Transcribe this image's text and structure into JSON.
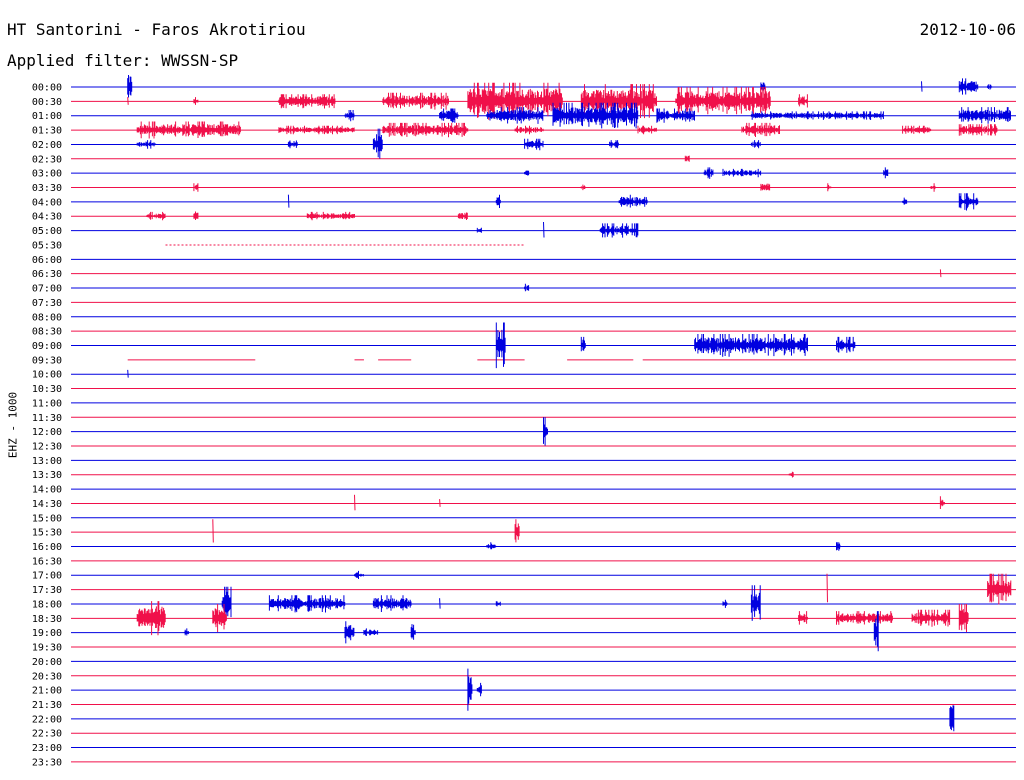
{
  "header": {
    "station": "HT Santorini - Faros Akrotiriou",
    "date": "2012-10-06",
    "filter": "Applied filter: WWSSN-SP"
  },
  "chart_data": {
    "type": "line",
    "ylabel": "EHZ - 1000",
    "row_labels": [
      "00:00",
      "00:30",
      "01:00",
      "01:30",
      "02:00",
      "02:30",
      "03:00",
      "03:30",
      "04:00",
      "04:30",
      "05:00",
      "05:30",
      "06:00",
      "06:30",
      "07:00",
      "07:30",
      "08:00",
      "08:30",
      "09:00",
      "09:30",
      "10:00",
      "10:30",
      "11:00",
      "11:30",
      "12:00",
      "12:30",
      "13:00",
      "13:30",
      "14:00",
      "14:30",
      "15:00",
      "15:30",
      "16:00",
      "16:30",
      "17:00",
      "17:30",
      "18:00",
      "18:30",
      "19:00",
      "19:30",
      "20:00",
      "20:30",
      "21:00",
      "21:30",
      "22:00",
      "22:30",
      "23:00",
      "23:30"
    ],
    "colors": {
      "even_rows": "#0000e0",
      "odd_rows": "#f0104a"
    },
    "events": [
      {
        "row": 0,
        "start": 0.06,
        "end": 0.065,
        "amp": 1.2
      },
      {
        "row": 0,
        "start": 0.73,
        "end": 0.735,
        "amp": 0.5
      },
      {
        "row": 0,
        "start": 0.9,
        "end": 0.902,
        "amp": 0.4
      },
      {
        "row": 0,
        "start": 0.94,
        "end": 0.96,
        "amp": 0.6
      },
      {
        "row": 0,
        "start": 0.97,
        "end": 0.975,
        "amp": 0.3
      },
      {
        "row": 1,
        "start": 0.06,
        "end": 0.062,
        "amp": 0.3
      },
      {
        "row": 1,
        "start": 0.13,
        "end": 0.135,
        "amp": 0.3
      },
      {
        "row": 1,
        "start": 0.22,
        "end": 0.28,
        "amp": 0.5
      },
      {
        "row": 1,
        "start": 0.33,
        "end": 0.4,
        "amp": 0.6
      },
      {
        "row": 1,
        "start": 0.42,
        "end": 0.52,
        "amp": 1.3
      },
      {
        "row": 1,
        "start": 0.54,
        "end": 0.62,
        "amp": 1.2
      },
      {
        "row": 1,
        "start": 0.64,
        "end": 0.74,
        "amp": 1.0
      },
      {
        "row": 1,
        "start": 0.77,
        "end": 0.78,
        "amp": 0.5
      },
      {
        "row": 2,
        "start": 0.29,
        "end": 0.3,
        "amp": 0.4
      },
      {
        "row": 2,
        "start": 0.39,
        "end": 0.41,
        "amp": 0.5
      },
      {
        "row": 2,
        "start": 0.44,
        "end": 0.5,
        "amp": 0.6
      },
      {
        "row": 2,
        "start": 0.51,
        "end": 0.6,
        "amp": 0.9
      },
      {
        "row": 2,
        "start": 0.62,
        "end": 0.66,
        "amp": 0.5
      },
      {
        "row": 2,
        "start": 0.72,
        "end": 0.86,
        "amp": 0.3
      },
      {
        "row": 2,
        "start": 0.94,
        "end": 0.995,
        "amp": 0.6
      },
      {
        "row": 3,
        "start": 0.07,
        "end": 0.18,
        "amp": 0.6
      },
      {
        "row": 3,
        "start": 0.22,
        "end": 0.3,
        "amp": 0.3
      },
      {
        "row": 3,
        "start": 0.33,
        "end": 0.42,
        "amp": 0.5
      },
      {
        "row": 3,
        "start": 0.47,
        "end": 0.5,
        "amp": 0.3
      },
      {
        "row": 3,
        "start": 0.6,
        "end": 0.62,
        "amp": 0.3
      },
      {
        "row": 3,
        "start": 0.71,
        "end": 0.75,
        "amp": 0.5
      },
      {
        "row": 3,
        "start": 0.88,
        "end": 0.91,
        "amp": 0.3
      },
      {
        "row": 3,
        "start": 0.94,
        "end": 0.98,
        "amp": 0.4
      },
      {
        "row": 4,
        "start": 0.07,
        "end": 0.09,
        "amp": 0.3
      },
      {
        "row": 4,
        "start": 0.23,
        "end": 0.24,
        "amp": 0.4
      },
      {
        "row": 4,
        "start": 0.32,
        "end": 0.33,
        "amp": 1.1
      },
      {
        "row": 4,
        "start": 0.48,
        "end": 0.5,
        "amp": 0.4
      },
      {
        "row": 4,
        "start": 0.57,
        "end": 0.58,
        "amp": 0.3
      },
      {
        "row": 4,
        "start": 0.72,
        "end": 0.73,
        "amp": 0.3
      },
      {
        "row": 5,
        "start": 0.65,
        "end": 0.655,
        "amp": 0.4
      },
      {
        "row": 6,
        "start": 0.48,
        "end": 0.485,
        "amp": 0.4
      },
      {
        "row": 6,
        "start": 0.67,
        "end": 0.68,
        "amp": 0.4
      },
      {
        "row": 6,
        "start": 0.69,
        "end": 0.73,
        "amp": 0.3
      },
      {
        "row": 6,
        "start": 0.86,
        "end": 0.865,
        "amp": 0.4
      },
      {
        "row": 7,
        "start": 0.13,
        "end": 0.135,
        "amp": 0.3
      },
      {
        "row": 7,
        "start": 0.54,
        "end": 0.545,
        "amp": 0.3
      },
      {
        "row": 7,
        "start": 0.73,
        "end": 0.74,
        "amp": 0.4
      },
      {
        "row": 7,
        "start": 0.8,
        "end": 0.805,
        "amp": 0.3
      },
      {
        "row": 7,
        "start": 0.91,
        "end": 0.915,
        "amp": 0.3
      },
      {
        "row": 8,
        "start": 0.23,
        "end": 0.232,
        "amp": 0.5
      },
      {
        "row": 8,
        "start": 0.45,
        "end": 0.455,
        "amp": 0.5
      },
      {
        "row": 8,
        "start": 0.58,
        "end": 0.61,
        "amp": 0.5
      },
      {
        "row": 8,
        "start": 0.88,
        "end": 0.885,
        "amp": 0.3
      },
      {
        "row": 8,
        "start": 0.94,
        "end": 0.96,
        "amp": 0.6
      },
      {
        "row": 9,
        "start": 0.08,
        "end": 0.1,
        "amp": 0.3
      },
      {
        "row": 9,
        "start": 0.13,
        "end": 0.135,
        "amp": 0.5
      },
      {
        "row": 9,
        "start": 0.25,
        "end": 0.3,
        "amp": 0.3
      },
      {
        "row": 9,
        "start": 0.41,
        "end": 0.42,
        "amp": 0.4
      },
      {
        "row": 10,
        "start": 0.43,
        "end": 0.435,
        "amp": 0.3
      },
      {
        "row": 10,
        "start": 0.5,
        "end": 0.502,
        "amp": 0.6
      },
      {
        "row": 10,
        "start": 0.56,
        "end": 0.6,
        "amp": 0.5
      },
      {
        "row": 13,
        "start": 0.92,
        "end": 0.922,
        "amp": 0.3
      },
      {
        "row": 14,
        "start": 0.48,
        "end": 0.485,
        "amp": 0.3
      },
      {
        "row": 18,
        "start": 0.45,
        "end": 0.46,
        "amp": 1.6
      },
      {
        "row": 18,
        "start": 0.54,
        "end": 0.545,
        "amp": 0.6
      },
      {
        "row": 18,
        "start": 0.66,
        "end": 0.78,
        "amp": 0.8
      },
      {
        "row": 18,
        "start": 0.81,
        "end": 0.83,
        "amp": 0.6
      },
      {
        "row": 20,
        "start": 0.06,
        "end": 0.062,
        "amp": 0.3
      },
      {
        "row": 24,
        "start": 0.5,
        "end": 0.505,
        "amp": 1.0
      },
      {
        "row": 27,
        "start": 0.76,
        "end": 0.765,
        "amp": 0.3
      },
      {
        "row": 29,
        "start": 0.3,
        "end": 0.302,
        "amp": 0.6
      },
      {
        "row": 29,
        "start": 0.39,
        "end": 0.392,
        "amp": 0.3
      },
      {
        "row": 29,
        "start": 0.92,
        "end": 0.925,
        "amp": 0.5
      },
      {
        "row": 31,
        "start": 0.15,
        "end": 0.152,
        "amp": 0.9
      },
      {
        "row": 31,
        "start": 0.47,
        "end": 0.475,
        "amp": 0.9
      },
      {
        "row": 32,
        "start": 0.44,
        "end": 0.45,
        "amp": 0.3
      },
      {
        "row": 32,
        "start": 0.81,
        "end": 0.815,
        "amp": 0.3
      },
      {
        "row": 34,
        "start": 0.3,
        "end": 0.31,
        "amp": 0.3
      },
      {
        "row": 35,
        "start": 0.8,
        "end": 0.802,
        "amp": 1.1
      },
      {
        "row": 35,
        "start": 0.97,
        "end": 0.995,
        "amp": 1.1
      },
      {
        "row": 36,
        "start": 0.16,
        "end": 0.17,
        "amp": 1.2
      },
      {
        "row": 36,
        "start": 0.21,
        "end": 0.29,
        "amp": 0.6
      },
      {
        "row": 36,
        "start": 0.32,
        "end": 0.36,
        "amp": 0.6
      },
      {
        "row": 36,
        "start": 0.39,
        "end": 0.392,
        "amp": 0.4
      },
      {
        "row": 36,
        "start": 0.45,
        "end": 0.455,
        "amp": 0.3
      },
      {
        "row": 36,
        "start": 0.69,
        "end": 0.695,
        "amp": 0.3
      },
      {
        "row": 36,
        "start": 0.72,
        "end": 0.73,
        "amp": 1.3
      },
      {
        "row": 37,
        "start": 0.07,
        "end": 0.1,
        "amp": 1.2
      },
      {
        "row": 37,
        "start": 0.15,
        "end": 0.165,
        "amp": 1.0
      },
      {
        "row": 37,
        "start": 0.77,
        "end": 0.78,
        "amp": 0.5
      },
      {
        "row": 37,
        "start": 0.81,
        "end": 0.87,
        "amp": 0.5
      },
      {
        "row": 37,
        "start": 0.89,
        "end": 0.93,
        "amp": 0.6
      },
      {
        "row": 37,
        "start": 0.94,
        "end": 0.95,
        "amp": 1.0
      },
      {
        "row": 38,
        "start": 0.12,
        "end": 0.125,
        "amp": 0.3
      },
      {
        "row": 38,
        "start": 0.29,
        "end": 0.3,
        "amp": 0.8
      },
      {
        "row": 38,
        "start": 0.31,
        "end": 0.325,
        "amp": 0.3
      },
      {
        "row": 38,
        "start": 0.36,
        "end": 0.365,
        "amp": 0.9
      },
      {
        "row": 38,
        "start": 0.85,
        "end": 0.855,
        "amp": 1.5
      },
      {
        "row": 42,
        "start": 0.42,
        "end": 0.425,
        "amp": 1.5
      },
      {
        "row": 42,
        "start": 0.43,
        "end": 0.435,
        "amp": 0.5
      },
      {
        "row": 44,
        "start": 0.93,
        "end": 0.935,
        "amp": 1.6
      }
    ],
    "gaps": [
      {
        "row": 11,
        "segments": [
          [
            0.1,
            0.48
          ]
        ],
        "style": "dotted"
      },
      {
        "row": 19,
        "segments": [
          [
            0.06,
            0.195
          ],
          [
            0.3,
            0.31
          ],
          [
            0.325,
            0.36
          ],
          [
            0.43,
            0.48
          ],
          [
            0.525,
            0.595
          ],
          [
            0.605,
            1.0
          ]
        ],
        "style": "partial"
      }
    ]
  }
}
